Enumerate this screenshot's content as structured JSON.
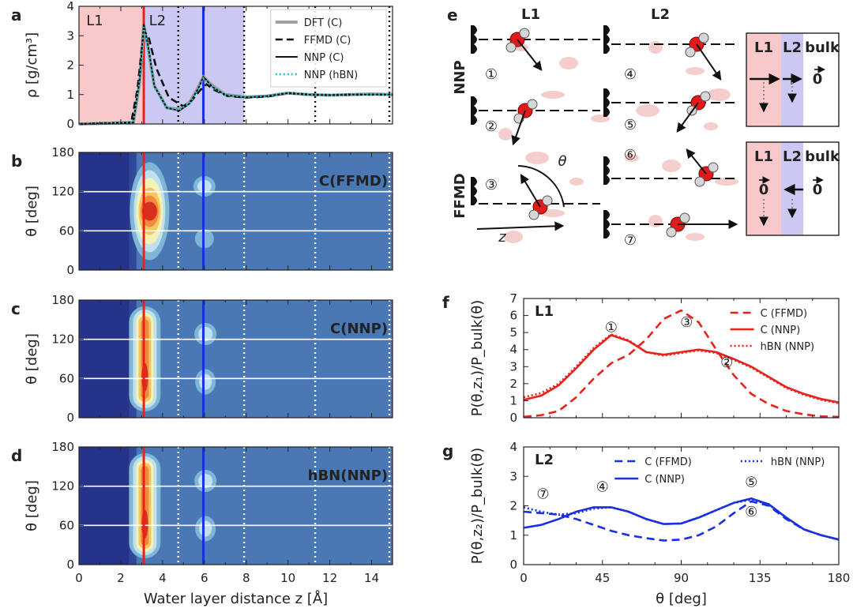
{
  "panels": {
    "a": "a",
    "b": "b",
    "c": "c",
    "d": "d",
    "e": "e",
    "f": "f",
    "g": "g"
  },
  "colors": {
    "L1_bg": "#f9c9c9",
    "L2_bg": "#c9c9f4",
    "red": "#e8221b",
    "blue": "#1a2fe0",
    "cyan": "#22c0c8",
    "gray": "#a0a0a0",
    "heat_bg": "#4a78b4",
    "heat_dark": "#25338a"
  },
  "chart_data": [
    {
      "id": "a",
      "type": "line",
      "ylabel": "ρ [g/cm³]",
      "xlim": [
        0,
        15
      ],
      "ylim": [
        0,
        4
      ],
      "yticks": [
        "0",
        "1",
        "2",
        "3",
        "4"
      ],
      "regions": [
        {
          "name": "L1",
          "x": [
            0,
            3.1
          ]
        },
        {
          "name": "L2",
          "x": [
            3.1,
            7.9
          ]
        }
      ],
      "region_labels": [
        "L1",
        "L2"
      ],
      "vlines_solid": [
        {
          "x": 3.1,
          "color": "red"
        },
        {
          "x": 5.95,
          "color": "blue"
        }
      ],
      "vlines_dotted": [
        4.75,
        7.9,
        11.3,
        14.85
      ],
      "series": [
        {
          "name": "DFT (C)",
          "style": "solid-gray",
          "x": [
            0,
            2.6,
            2.9,
            3.1,
            3.3,
            3.6,
            4.2,
            4.8,
            5.3,
            5.7,
            5.95,
            6.4,
            7.0,
            8,
            9,
            10,
            11,
            12,
            13,
            14,
            15
          ],
          "y": [
            0,
            0.05,
            1.4,
            3.35,
            2.6,
            1.3,
            0.55,
            0.5,
            0.75,
            1.25,
            1.6,
            1.3,
            1.0,
            0.92,
            0.95,
            1.05,
            1.0,
            0.98,
            1.0,
            1.02,
            1.0
          ]
        },
        {
          "name": "FFMD (C)",
          "style": "dashed-black",
          "x": [
            0,
            2.5,
            2.8,
            3.1,
            3.35,
            3.7,
            4.3,
            5.0,
            5.4,
            5.8,
            6.1,
            6.5,
            7.1,
            8,
            9,
            10,
            11,
            12,
            13,
            14,
            15
          ],
          "y": [
            0,
            0.05,
            1.2,
            3.2,
            2.9,
            1.9,
            0.9,
            0.6,
            0.8,
            1.15,
            1.35,
            1.15,
            0.95,
            0.9,
            0.93,
            1.05,
            1.0,
            0.98,
            1.0,
            1.0,
            1.0
          ]
        },
        {
          "name": "NNP (C)",
          "style": "solid-black",
          "x": [
            0,
            2.6,
            2.9,
            3.1,
            3.3,
            3.6,
            4.2,
            4.8,
            5.3,
            5.7,
            5.95,
            6.4,
            7.0,
            8,
            9,
            10,
            11,
            12,
            13,
            14,
            15
          ],
          "y": [
            0,
            0.05,
            1.5,
            3.4,
            2.7,
            1.3,
            0.55,
            0.45,
            0.7,
            1.2,
            1.6,
            1.25,
            0.98,
            0.9,
            0.95,
            1.05,
            1.0,
            0.98,
            1.0,
            1.0,
            1.0
          ]
        },
        {
          "name": "NNP (hBN)",
          "style": "dotted-cyan",
          "x": [
            0,
            2.6,
            2.9,
            3.1,
            3.3,
            3.6,
            4.2,
            4.8,
            5.3,
            5.7,
            5.95,
            6.4,
            7.0,
            8,
            9,
            10,
            11,
            12,
            13,
            14,
            15
          ],
          "y": [
            0,
            0.05,
            1.45,
            3.3,
            2.65,
            1.3,
            0.55,
            0.48,
            0.72,
            1.2,
            1.55,
            1.25,
            0.98,
            0.92,
            0.95,
            1.05,
            1.0,
            0.98,
            1.0,
            1.0,
            1.0
          ]
        }
      ]
    },
    {
      "id": "b",
      "type": "heatmap",
      "title": "C(FFMD)",
      "ylabel": "θ [deg]",
      "ylim": [
        0,
        180
      ],
      "yticks": [
        "0",
        "60",
        "120",
        "180"
      ],
      "hlines": [
        60,
        120
      ],
      "variant": "ffmd"
    },
    {
      "id": "c",
      "type": "heatmap",
      "title": "C(NNP)",
      "ylabel": "θ [deg]",
      "ylim": [
        0,
        180
      ],
      "yticks": [
        "0",
        "60",
        "120",
        "180"
      ],
      "hlines": [
        60,
        120
      ],
      "variant": "nnp"
    },
    {
      "id": "d",
      "type": "heatmap",
      "title": "hBN(NNP)",
      "ylabel": "θ [deg]",
      "ylim": [
        0,
        180
      ],
      "yticks": [
        "0",
        "60",
        "120",
        "180"
      ],
      "hlines": [
        60,
        120
      ],
      "variant": "nnp",
      "xlabel": "Water layer distance z [Å]",
      "xticks": [
        "0",
        "2",
        "4",
        "6",
        "8",
        "10",
        "12",
        "14"
      ]
    },
    {
      "id": "f",
      "type": "line",
      "panel_label": "L1",
      "xlim": [
        0,
        180
      ],
      "ylim": [
        0,
        7
      ],
      "ylabel": "P(θ,z₁)/P_bulk(θ)",
      "yticks": [
        "0",
        "1",
        "2",
        "3",
        "4",
        "5",
        "6",
        "7"
      ],
      "series": [
        {
          "name": "C (FFMD)",
          "style": "dashed",
          "x": [
            0,
            10,
            20,
            30,
            40,
            50,
            60,
            70,
            80,
            90,
            100,
            110,
            120,
            130,
            140,
            150,
            160,
            170,
            180
          ],
          "y": [
            0.05,
            0.15,
            0.4,
            1.2,
            2.3,
            3.2,
            3.7,
            4.6,
            5.8,
            6.3,
            5.6,
            4.0,
            2.5,
            1.4,
            0.8,
            0.4,
            0.2,
            0.08,
            0.05
          ]
        },
        {
          "name": "C (NNP)",
          "style": "solid",
          "x": [
            0,
            10,
            20,
            30,
            40,
            50,
            60,
            70,
            80,
            90,
            100,
            110,
            120,
            130,
            140,
            150,
            160,
            170,
            180
          ],
          "y": [
            1.05,
            1.3,
            1.9,
            2.9,
            4.0,
            4.85,
            4.5,
            3.85,
            3.7,
            3.85,
            4.0,
            3.85,
            3.45,
            3.0,
            2.4,
            1.8,
            1.4,
            1.1,
            0.9
          ]
        },
        {
          "name": "hBN (NNP)",
          "style": "dotted",
          "x": [
            0,
            10,
            20,
            30,
            40,
            50,
            60,
            70,
            80,
            90,
            100,
            110,
            120,
            130,
            140,
            150,
            160,
            170,
            180
          ],
          "y": [
            1.2,
            1.45,
            2.0,
            3.0,
            4.1,
            4.9,
            4.55,
            3.85,
            3.65,
            3.8,
            3.95,
            3.8,
            3.4,
            2.95,
            2.35,
            1.75,
            1.35,
            1.05,
            0.85
          ]
        }
      ],
      "markers": [
        {
          "label": "①",
          "x": 50,
          "y": 5.3
        },
        {
          "label": "③",
          "x": 93,
          "y": 5.6
        },
        {
          "label": "②",
          "x": 116,
          "y": 3.25
        }
      ]
    },
    {
      "id": "g",
      "type": "line",
      "panel_label": "L2",
      "xlim": [
        0,
        180
      ],
      "ylim": [
        0,
        4
      ],
      "ylabel": "P(θ,z₂)/P_bulk(θ)",
      "yticks": [
        "0",
        "1",
        "2",
        "3",
        "4"
      ],
      "xlabel": "θ [deg]",
      "xticks": [
        "0",
        "45",
        "90",
        "135",
        "180"
      ],
      "series": [
        {
          "name": "C (FFMD)",
          "style": "dashed",
          "x": [
            0,
            10,
            20,
            30,
            40,
            50,
            60,
            70,
            80,
            90,
            100,
            110,
            120,
            130,
            140,
            150,
            160,
            170,
            180
          ],
          "y": [
            1.8,
            1.75,
            1.7,
            1.55,
            1.35,
            1.15,
            1.0,
            0.9,
            0.82,
            0.85,
            1.0,
            1.3,
            1.75,
            2.15,
            2.0,
            1.55,
            1.2,
            1.0,
            0.85
          ]
        },
        {
          "name": "C (NNP)",
          "style": "solid",
          "x": [
            0,
            10,
            20,
            30,
            40,
            50,
            60,
            70,
            80,
            90,
            100,
            110,
            120,
            130,
            140,
            150,
            160,
            170,
            180
          ],
          "y": [
            1.25,
            1.35,
            1.55,
            1.8,
            1.95,
            1.95,
            1.8,
            1.55,
            1.38,
            1.4,
            1.6,
            1.85,
            2.1,
            2.25,
            2.05,
            1.6,
            1.2,
            1.0,
            0.85
          ]
        },
        {
          "name": "hBN (NNP)",
          "style": "dotted",
          "x": [
            0,
            10,
            20,
            30,
            40,
            50,
            60,
            70,
            80,
            90,
            100,
            110,
            120,
            130,
            140,
            150,
            160,
            170,
            180
          ],
          "y": [
            1.95,
            1.8,
            1.7,
            1.75,
            1.9,
            1.95,
            1.8,
            1.55,
            1.38,
            1.4,
            1.6,
            1.85,
            2.1,
            2.2,
            2.05,
            1.6,
            1.2,
            1.0,
            0.85
          ]
        }
      ],
      "markers": [
        {
          "label": "⑦",
          "x": 11,
          "y": 2.4
        },
        {
          "label": "④",
          "x": 45,
          "y": 2.65
        },
        {
          "label": "⑤",
          "x": 130,
          "y": 2.8
        },
        {
          "label": "⑥",
          "x": 130,
          "y": 1.8
        }
      ]
    }
  ],
  "panel_e": {
    "col_labels": [
      "L1",
      "L2"
    ],
    "row_labels": [
      "NNP",
      "FFMD"
    ],
    "circled": [
      "①",
      "②",
      "③",
      "④",
      "⑤",
      "⑥",
      "⑦"
    ],
    "theta": "θ",
    "z": "z",
    "schematic1": {
      "labels": [
        "L1",
        "L2",
        "bulk"
      ],
      "zero": "0"
    },
    "schematic2": {
      "labels": [
        "L1",
        "L2",
        "bulk"
      ],
      "zero1": "0",
      "zero2": "0"
    }
  }
}
